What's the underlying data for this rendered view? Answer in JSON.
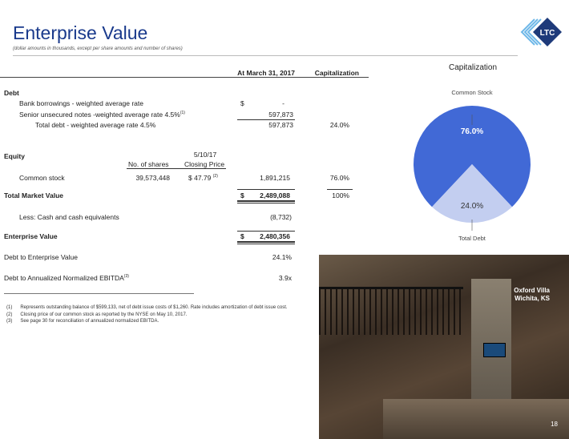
{
  "title": "Enterprise Value",
  "subtitle": "(dollar amounts in thousands, except per share amounts and number of shares)",
  "logo_text": "LTC REIT",
  "table": {
    "col_headers": [
      "At March 31, 2017",
      "Capitalization"
    ],
    "debt_label": "Debt",
    "bank": {
      "label": "Bank borrowings - weighted average rate",
      "currency": "$",
      "value": "-"
    },
    "notes": {
      "label": "Senior unsecured notes -weighted average rate 4.5%",
      "sup": "(1)",
      "value": "597,873"
    },
    "total_debt": {
      "label": "Total debt - weighted average rate 4.5%",
      "value": "597,873",
      "cap": "24.0%"
    },
    "equity_label": "Equity",
    "equity_headers": {
      "shares": "No. of shares",
      "date": "5/10/17",
      "price": "Closing Price"
    },
    "common": {
      "label": "Common stock",
      "shares": "39,573,448",
      "price": "$  47.79",
      "sup": "(2)",
      "value": "1,891,215",
      "cap": "76.0%"
    },
    "tmv": {
      "label": "Total Market Value",
      "currency": "$",
      "value": "2,489,088",
      "cap": "100%"
    },
    "cash": {
      "label": "Less:  Cash and cash equivalents",
      "value": "(8,732)"
    },
    "ev": {
      "label": "Enterprise Value",
      "currency": "$",
      "value": "2,480,356"
    },
    "debt_ev": {
      "label": "Debt to Enterprise Value",
      "value": "24.1%"
    },
    "debt_ebitda": {
      "label": "Debt to Annualized Normalized EBITDA",
      "sup": "(3)",
      "value": "3.9x"
    }
  },
  "footnotes": [
    {
      "n": "(1)",
      "text": "Represents outstanding balance of $599,133, net of debt issue costs of $1,260.  Rate includes amortization of debt issue cost."
    },
    {
      "n": "(2)",
      "text": "Closing price of our common stock as reported by the NYSE on May 10, 2017."
    },
    {
      "n": "(3)",
      "text": "See page 30 for reconciliation of annualized normalized EBITDA."
    }
  ],
  "chart_data": {
    "type": "pie",
    "title": "Capitalization",
    "categories": [
      "Common Stock",
      "Total Debt"
    ],
    "values": [
      76.0,
      24.0
    ],
    "labels": [
      "76.0%",
      "24.0%"
    ],
    "colors": [
      "#4169d6",
      "#c3cef0"
    ]
  },
  "photo": {
    "caption_line1": "Oxford Villa",
    "caption_line2": "Wichita, KS"
  },
  "page_number": "18"
}
